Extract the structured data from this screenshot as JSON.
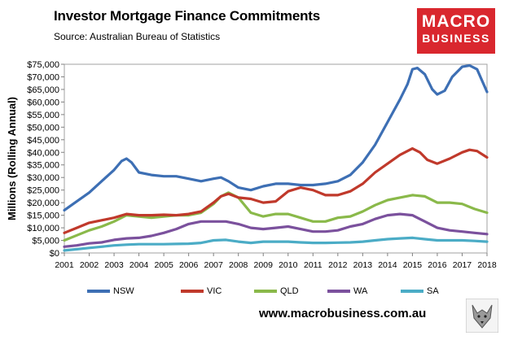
{
  "header": {
    "title": "Investor Mortgage Finance Commitments",
    "subtitle": "Source: Australian Bureau of Statistics"
  },
  "logo": {
    "line1": "MACRO",
    "line2": "BUSINESS",
    "bg_color": "#d9272e"
  },
  "footer": {
    "url": "www.macrobusiness.com.au",
    "mascot_icon": "wolf-face-icon"
  },
  "chart_data": {
    "type": "line",
    "title": "Investor Mortgage Finance Commitments",
    "ylabel": "Millions (Rolling Annual)",
    "xlabel": "",
    "ylim": [
      0,
      75000
    ],
    "xlim": [
      2001,
      2018
    ],
    "grid": false,
    "legend_position": "bottom",
    "y_ticks": [
      "$0",
      "$5,000",
      "$10,000",
      "$15,000",
      "$20,000",
      "$25,000",
      "$30,000",
      "$35,000",
      "$40,000",
      "$45,000",
      "$50,000",
      "$55,000",
      "$60,000",
      "$65,000",
      "$70,000",
      "$75,000"
    ],
    "x_ticks": [
      "2001",
      "2002",
      "2003",
      "2004",
      "2005",
      "2006",
      "2007",
      "2008",
      "2009",
      "2010",
      "2011",
      "2012",
      "2013",
      "2014",
      "2015",
      "2016",
      "2017",
      "2018"
    ],
    "series": [
      {
        "name": "NSW",
        "color": "#3d6fb4",
        "x": [
          2001.0,
          2001.5,
          2002.0,
          2002.5,
          2003.0,
          2003.3,
          2003.5,
          2003.7,
          2004.0,
          2004.5,
          2005.0,
          2005.5,
          2006.0,
          2006.5,
          2007.0,
          2007.3,
          2007.6,
          2008.0,
          2008.5,
          2009.0,
          2009.5,
          2010.0,
          2010.5,
          2011.0,
          2011.5,
          2012.0,
          2012.5,
          2013.0,
          2013.5,
          2014.0,
          2014.5,
          2014.8,
          2015.0,
          2015.2,
          2015.5,
          2015.8,
          2016.0,
          2016.3,
          2016.6,
          2017.0,
          2017.3,
          2017.6,
          2017.8,
          2018.0
        ],
        "y": [
          17000,
          20500,
          24000,
          28500,
          33000,
          36500,
          37500,
          36000,
          32000,
          31000,
          30500,
          30500,
          29500,
          28500,
          29500,
          30000,
          28500,
          26000,
          25000,
          26500,
          27500,
          27500,
          27000,
          27000,
          27500,
          28500,
          31000,
          36000,
          43000,
          52000,
          61000,
          67000,
          73000,
          73500,
          71000,
          65000,
          63000,
          64500,
          70000,
          74000,
          74500,
          73000,
          68500,
          64000
        ]
      },
      {
        "name": "VIC",
        "color": "#c0392b",
        "x": [
          2001.0,
          2001.5,
          2002.0,
          2002.5,
          2003.0,
          2003.5,
          2004.0,
          2004.5,
          2005.0,
          2005.5,
          2006.0,
          2006.5,
          2007.0,
          2007.3,
          2007.6,
          2008.0,
          2008.5,
          2009.0,
          2009.5,
          2010.0,
          2010.5,
          2011.0,
          2011.5,
          2012.0,
          2012.5,
          2013.0,
          2013.5,
          2014.0,
          2014.5,
          2015.0,
          2015.3,
          2015.6,
          2016.0,
          2016.5,
          2017.0,
          2017.3,
          2017.6,
          2018.0
        ],
        "y": [
          8000,
          10000,
          12000,
          13000,
          14000,
          15500,
          15000,
          15000,
          15200,
          15000,
          15500,
          16500,
          20000,
          22500,
          23500,
          22000,
          21500,
          20000,
          20500,
          24500,
          26000,
          25000,
          23000,
          23000,
          24500,
          27500,
          32000,
          35500,
          39000,
          41500,
          40000,
          37000,
          35500,
          37500,
          40000,
          41000,
          40500,
          38000
        ]
      },
      {
        "name": "QLD",
        "color": "#8ab94a",
        "x": [
          2001.0,
          2001.5,
          2002.0,
          2002.5,
          2003.0,
          2003.5,
          2004.0,
          2004.5,
          2005.0,
          2005.5,
          2006.0,
          2006.5,
          2007.0,
          2007.3,
          2007.6,
          2008.0,
          2008.5,
          2009.0,
          2009.5,
          2010.0,
          2010.5,
          2011.0,
          2011.5,
          2012.0,
          2012.5,
          2013.0,
          2013.5,
          2014.0,
          2014.5,
          2015.0,
          2015.5,
          2016.0,
          2016.5,
          2017.0,
          2017.5,
          2018.0
        ],
        "y": [
          5000,
          7000,
          9000,
          10500,
          12500,
          15000,
          14500,
          14000,
          14500,
          15000,
          15000,
          16000,
          19500,
          22500,
          24000,
          22000,
          16000,
          14500,
          15500,
          15500,
          14000,
          12500,
          12500,
          14000,
          14500,
          16500,
          19000,
          21000,
          22000,
          23000,
          22500,
          20000,
          20000,
          19500,
          17500,
          16000
        ]
      },
      {
        "name": "WA",
        "color": "#7b519d",
        "x": [
          2001.0,
          2001.5,
          2002.0,
          2002.5,
          2003.0,
          2003.5,
          2004.0,
          2004.5,
          2005.0,
          2005.5,
          2006.0,
          2006.5,
          2007.0,
          2007.5,
          2008.0,
          2008.5,
          2009.0,
          2009.5,
          2010.0,
          2010.5,
          2011.0,
          2011.5,
          2012.0,
          2012.5,
          2013.0,
          2013.5,
          2014.0,
          2014.5,
          2015.0,
          2015.5,
          2016.0,
          2016.5,
          2017.0,
          2017.5,
          2018.0
        ],
        "y": [
          2500,
          3000,
          3800,
          4200,
          5200,
          5800,
          6000,
          6800,
          8000,
          9500,
          11500,
          12500,
          12500,
          12500,
          11500,
          10000,
          9500,
          10000,
          10500,
          9500,
          8500,
          8500,
          9000,
          10500,
          11500,
          13500,
          15000,
          15500,
          15000,
          12500,
          10000,
          9000,
          8500,
          8000,
          7500
        ]
      },
      {
        "name": "SA",
        "color": "#4bacc6",
        "x": [
          2001.0,
          2001.5,
          2002.0,
          2002.5,
          2003.0,
          2003.5,
          2004.0,
          2004.5,
          2005.0,
          2005.5,
          2006.0,
          2006.5,
          2007.0,
          2007.5,
          2008.0,
          2008.5,
          2009.0,
          2009.5,
          2010.0,
          2010.5,
          2011.0,
          2011.5,
          2012.0,
          2012.5,
          2013.0,
          2013.5,
          2014.0,
          2014.5,
          2015.0,
          2015.5,
          2016.0,
          2016.5,
          2017.0,
          2017.5,
          2018.0
        ],
        "y": [
          1000,
          1500,
          2000,
          2500,
          3000,
          3300,
          3500,
          3500,
          3500,
          3600,
          3700,
          4000,
          5000,
          5200,
          4500,
          4000,
          4500,
          4500,
          4500,
          4200,
          4000,
          4000,
          4100,
          4200,
          4500,
          5000,
          5500,
          5800,
          6000,
          5500,
          5000,
          5000,
          5000,
          4800,
          4500
        ]
      }
    ]
  }
}
